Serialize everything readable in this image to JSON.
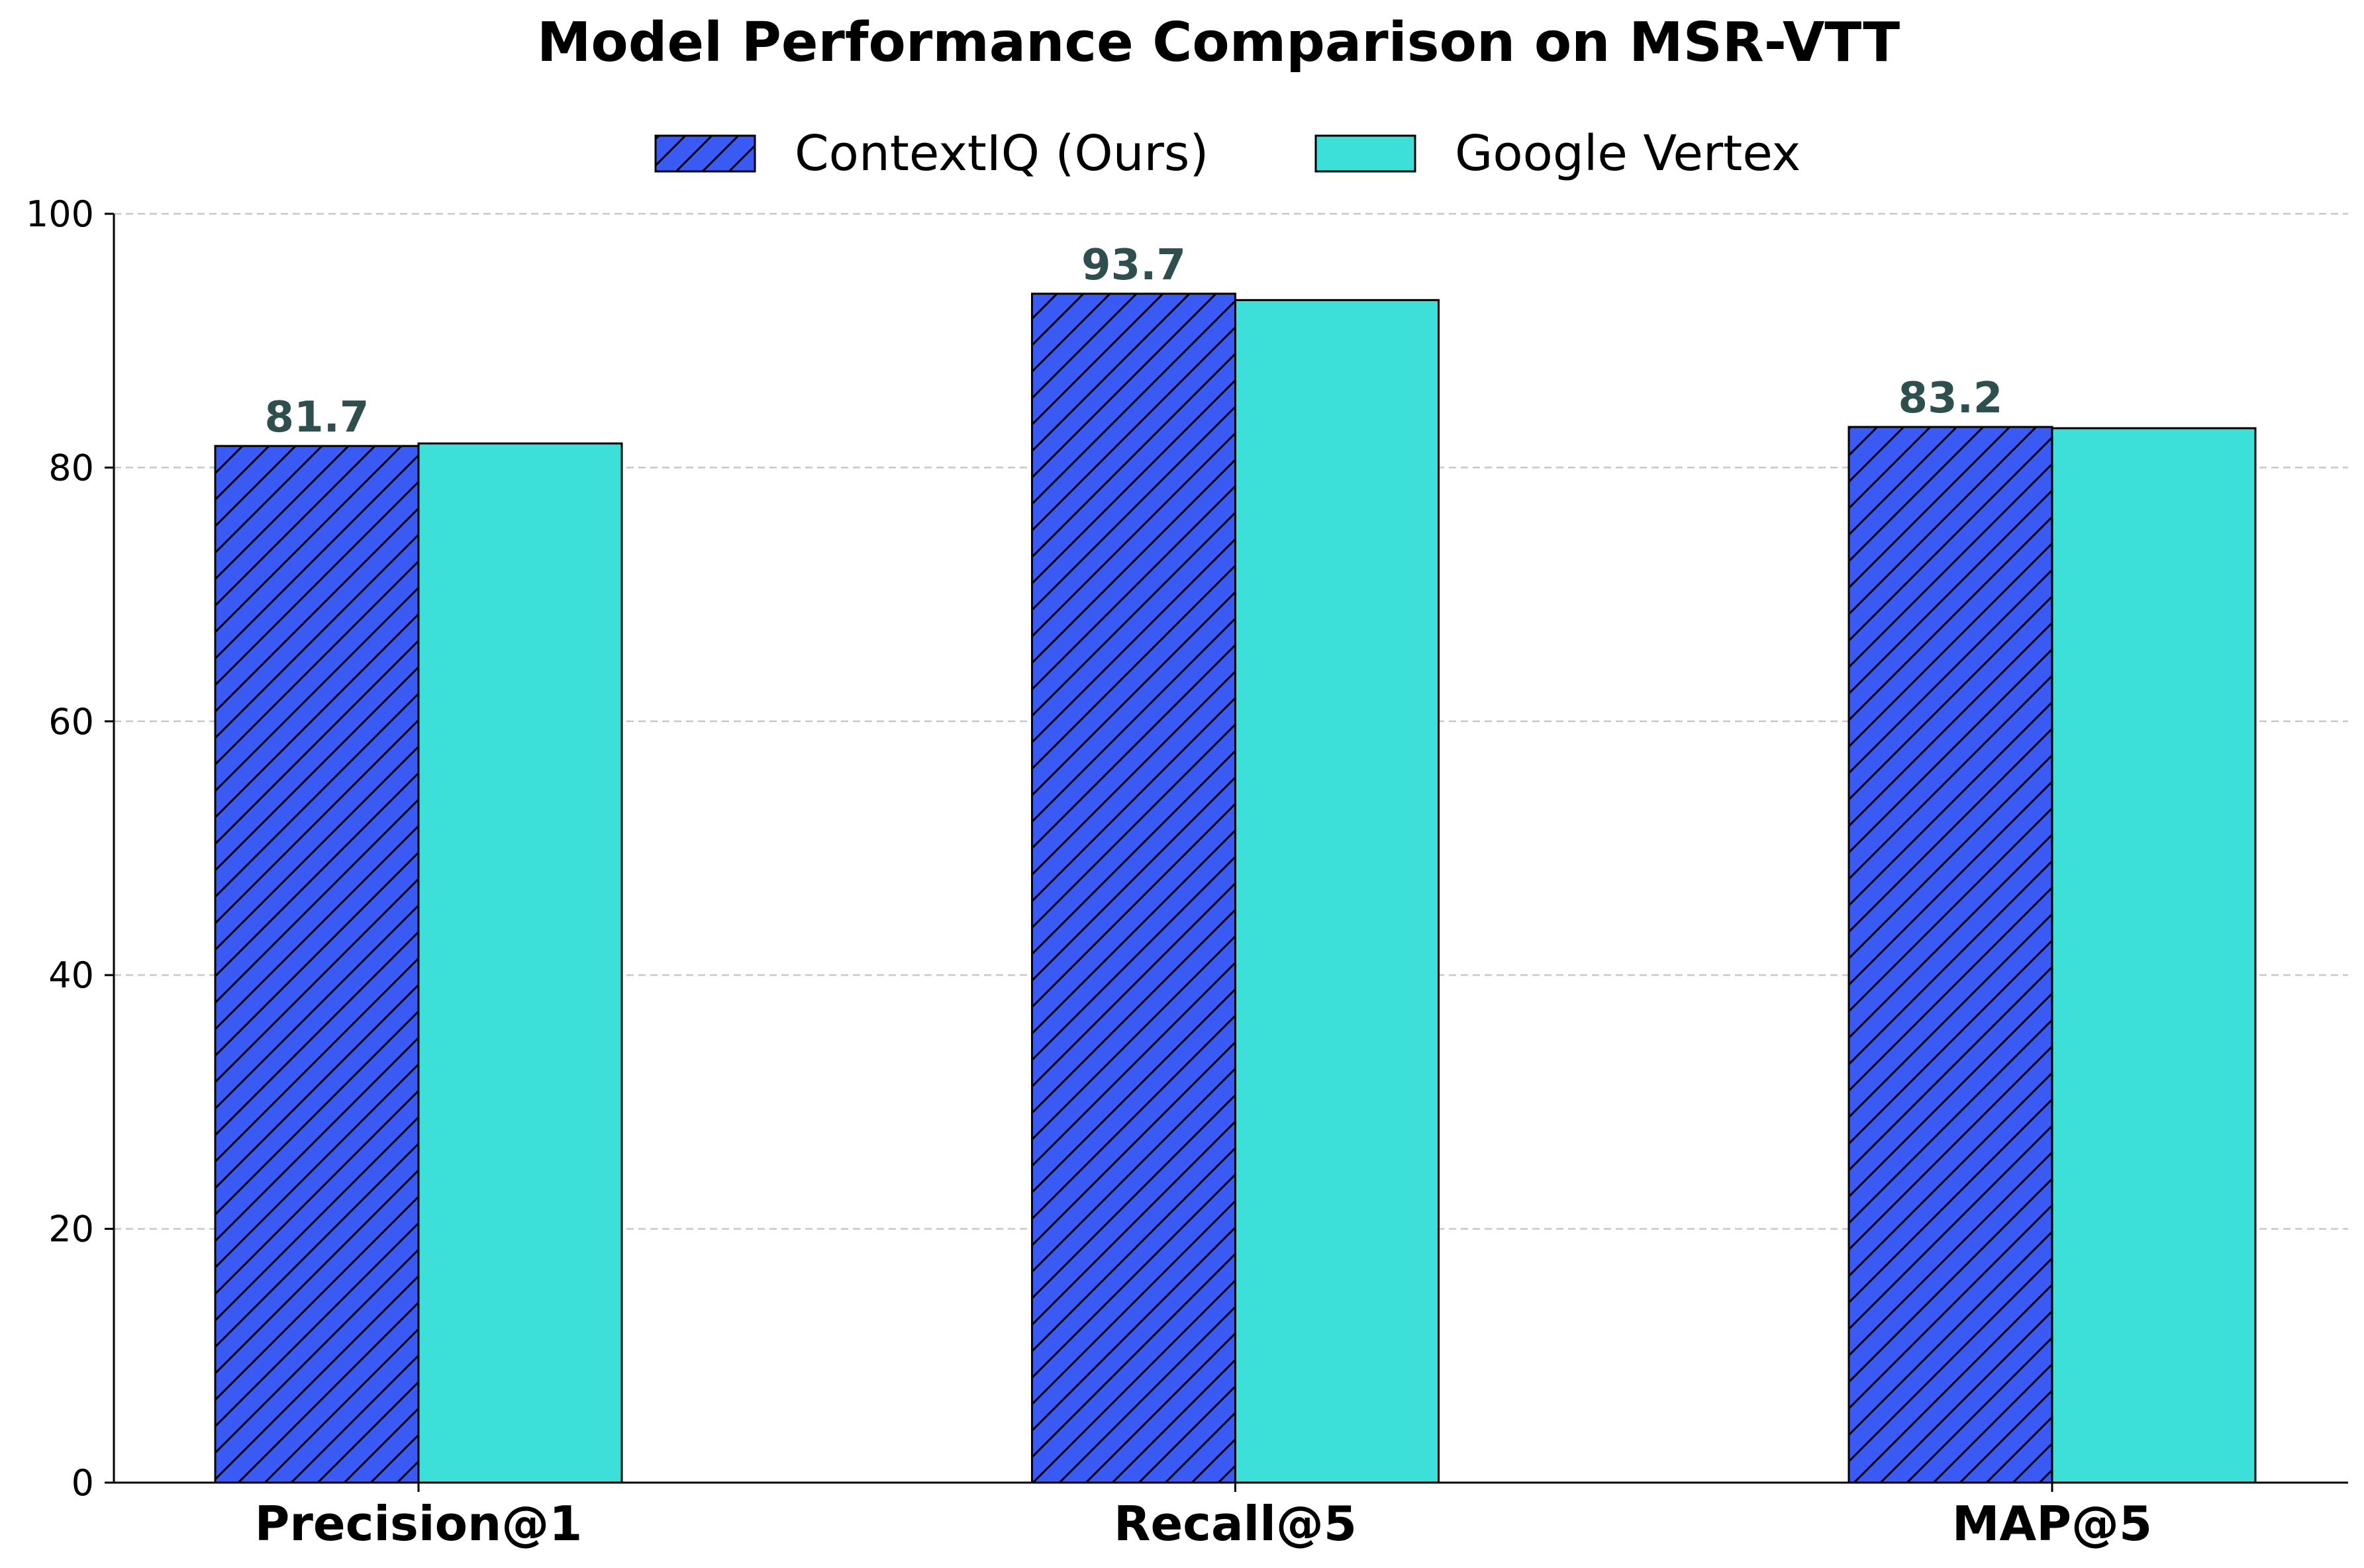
{
  "chart_data": {
    "type": "bar",
    "title": "Model Performance Comparison on MSR-VTT",
    "xlabel": "",
    "ylabel": "",
    "categories": [
      "Precision@1",
      "Recall@5",
      "MAP@5"
    ],
    "series": [
      {
        "name": "ContextIQ (Ours)",
        "values": [
          81.7,
          93.7,
          83.2
        ],
        "color": "#3a5af5",
        "hatch": "diagonal",
        "data_labels": [
          "81.7",
          "93.7",
          "83.2"
        ]
      },
      {
        "name": "Google Vertex",
        "values": [
          81.9,
          93.2,
          83.1
        ],
        "color": "#3ddfd9",
        "hatch": "none"
      }
    ],
    "ylim": [
      0,
      100
    ],
    "yticks": [
      0,
      20,
      40,
      60,
      80,
      100
    ],
    "ytick_labels": [
      "0",
      "20",
      "40",
      "60",
      "80",
      "100"
    ],
    "grid": "y-dashed",
    "legend_position": "top-center",
    "data_label_color": "#2f4f4f"
  }
}
